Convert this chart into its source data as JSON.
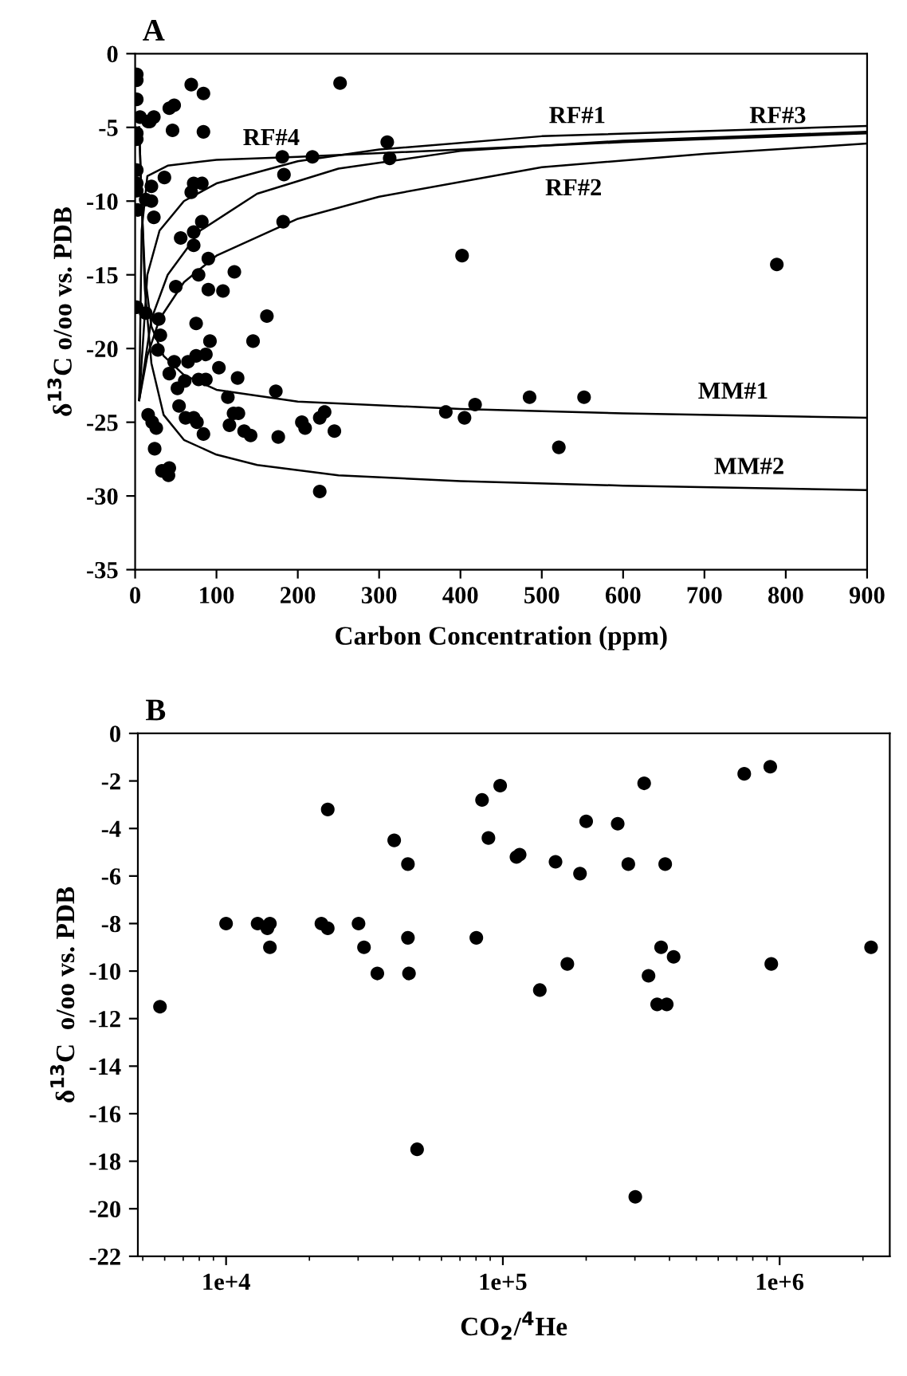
{
  "chart_data": [
    {
      "type": "scatter",
      "title": "A",
      "xlabel": "Carbon Concentration (ppm)",
      "ylabel": "δ$^{13}$C o/oo vs. PDB",
      "xlim": [
        0,
        900
      ],
      "xticks": [
        0,
        100,
        200,
        300,
        400,
        500,
        600,
        700,
        800,
        900
      ],
      "ylim": [
        -35,
        0
      ],
      "yticks": [
        -35,
        -30,
        -25,
        -20,
        -15,
        -10,
        -5,
        0
      ],
      "grid": false,
      "legend": false,
      "series": [
        {
          "marker": "circle",
          "color": "#000000",
          "x": [
            2,
            2,
            69,
            84,
            252,
            2,
            42,
            48,
            6,
            16,
            23,
            18,
            46,
            84,
            2,
            2,
            310,
            181,
            218,
            313,
            2,
            2,
            2,
            20,
            36,
            72,
            82,
            69,
            183,
            13,
            20,
            3,
            23,
            82,
            72,
            56,
            72,
            182,
            90,
            122,
            78,
            50,
            90,
            108,
            2,
            13,
            162,
            29,
            75,
            31,
            92,
            28,
            145,
            75,
            87,
            65,
            48,
            103,
            42,
            126,
            61,
            78,
            87,
            52,
            173,
            114,
            16,
            21,
            26,
            24,
            54,
            121,
            127,
            62,
            72,
            76,
            84,
            116,
            134,
            142,
            176,
            205,
            209,
            227,
            233,
            245,
            33,
            42,
            41,
            227,
            382,
            405,
            418,
            485,
            402,
            789,
            552,
            521
          ],
          "values": [
            -1.4,
            -1.8,
            -2.1,
            -2.7,
            -2.0,
            -3.1,
            -3.7,
            -3.5,
            -4.3,
            -4.6,
            -4.3,
            -4.6,
            -5.2,
            -5.3,
            -5.4,
            -5.8,
            -6.0,
            -7.0,
            -7.0,
            -7.1,
            -7.9,
            -8.8,
            -9.3,
            -9.0,
            -8.4,
            -8.8,
            -8.8,
            -9.4,
            -8.2,
            -9.9,
            -10.0,
            -10.6,
            -11.1,
            -11.4,
            -12.1,
            -12.5,
            -13.0,
            -11.4,
            -13.9,
            -14.8,
            -15.0,
            -15.8,
            -16.0,
            -16.1,
            -17.2,
            -17.6,
            -17.8,
            -18.0,
            -18.3,
            -19.1,
            -19.5,
            -20.1,
            -19.5,
            -20.5,
            -20.4,
            -20.9,
            -20.9,
            -21.3,
            -21.7,
            -22.0,
            -22.2,
            -22.1,
            -22.1,
            -22.7,
            -22.9,
            -23.3,
            -24.5,
            -25.0,
            -25.4,
            -26.8,
            -23.9,
            -24.4,
            -24.4,
            -24.7,
            -24.7,
            -25.0,
            -25.8,
            -25.2,
            -25.6,
            -25.9,
            -26.0,
            -25.0,
            -25.4,
            -24.7,
            -24.3,
            -25.6,
            -28.3,
            -28.1,
            -28.6,
            -29.7,
            -24.3,
            -24.7,
            -23.8,
            -23.3,
            -13.7,
            -14.3,
            -23.3,
            -26.7
          ]
        },
        {
          "type": "line",
          "name": "RF#1",
          "color": "#000000",
          "x": [
            5,
            15,
            30,
            60,
            100,
            200,
            300,
            500,
            900
          ],
          "values": [
            -23.5,
            -15,
            -12,
            -10,
            -8.8,
            -7.3,
            -6.5,
            -5.6,
            -4.9
          ]
        },
        {
          "type": "line",
          "name": "RF#2",
          "color": "#000000",
          "x": [
            5,
            15,
            30,
            60,
            100,
            200,
            300,
            500,
            700,
            900
          ],
          "values": [
            -23.5,
            -20.5,
            -18,
            -15.5,
            -13.7,
            -11.2,
            -9.7,
            -7.7,
            -6.8,
            -6.1
          ]
        },
        {
          "type": "line",
          "name": "RF#3",
          "color": "#000000",
          "x": [
            5,
            20,
            40,
            80,
            150,
            250,
            400,
            600,
            900
          ],
          "values": [
            -23.5,
            -18,
            -15,
            -12,
            -9.5,
            -7.8,
            -6.6,
            -5.9,
            -5.3
          ]
        },
        {
          "type": "line",
          "name": "RF#4",
          "color": "#000000",
          "x": [
            5,
            8,
            15,
            40,
            100,
            200,
            400,
            600,
            900
          ],
          "values": [
            -23.5,
            -12,
            -8.3,
            -7.6,
            -7.2,
            -7.0,
            -6.5,
            -6.0,
            -5.4
          ]
        },
        {
          "type": "line",
          "name": "MM#1",
          "color": "#000000",
          "x": [
            5,
            8,
            12,
            20,
            35,
            60,
            100,
            200,
            400,
            600,
            900
          ],
          "values": [
            -5,
            -10,
            -15,
            -18.5,
            -20.5,
            -21.8,
            -22.8,
            -23.6,
            -24.1,
            -24.4,
            -24.7
          ]
        },
        {
          "type": "line",
          "name": "MM#2",
          "color": "#000000",
          "x": [
            5,
            8,
            12,
            20,
            35,
            60,
            100,
            150,
            250,
            400,
            600,
            900
          ],
          "values": [
            -5,
            -10,
            -16,
            -21,
            -24.5,
            -26.2,
            -27.2,
            -27.9,
            -28.6,
            -29.0,
            -29.3,
            -29.6
          ]
        }
      ]
    },
    {
      "type": "scatter",
      "title": "B",
      "xlabel": "CO$_{2}$/$^{4}$He",
      "ylabel": "δ$^{13}$C  o/oo vs. PDB",
      "log": "x",
      "xlim": [
        4800,
        2500000
      ],
      "xticks": [
        {
          "value": 10000,
          "label": "1e+4"
        },
        {
          "value": 100000,
          "label": "1e+5"
        },
        {
          "value": 1000000,
          "label": "1e+6"
        }
      ],
      "ylim": [
        -22,
        0
      ],
      "yticks": [
        -22,
        -20,
        -18,
        -16,
        -14,
        -12,
        -10,
        -8,
        -6,
        -4,
        -2,
        0
      ],
      "grid": false,
      "legend": false,
      "series": [
        {
          "marker": "circle",
          "color": "#000000",
          "x": [
            5770,
            10000,
            13000,
            14100,
            14400,
            14400,
            22100,
            23300,
            23300,
            30100,
            31500,
            35200,
            40500,
            45400,
            45400,
            45800,
            49000,
            80200,
            84100,
            88700,
            97800,
            112000,
            115000,
            155000,
            190000,
            200000,
            260000,
            284000,
            324000,
            386000,
            171000,
            136000,
            336000,
            373000,
            414000,
            361000,
            391000,
            301000,
            745000,
            925000,
            933000,
            2140000
          ],
          "values": [
            -11.5,
            -8.0,
            -8.0,
            -8.2,
            -8.0,
            -9.0,
            -8.0,
            -8.2,
            -3.2,
            -8.0,
            -9.0,
            -10.1,
            -4.5,
            -5.5,
            -8.6,
            -10.1,
            -17.5,
            -8.6,
            -2.8,
            -4.4,
            -2.2,
            -5.2,
            -5.1,
            -5.4,
            -5.9,
            -3.7,
            -3.8,
            -5.5,
            -2.1,
            -5.5,
            -9.7,
            -10.8,
            -10.2,
            -9.0,
            -9.4,
            -11.4,
            -11.4,
            -19.5,
            -1.7,
            -1.4,
            -9.7,
            -9.0
          ]
        }
      ]
    }
  ]
}
